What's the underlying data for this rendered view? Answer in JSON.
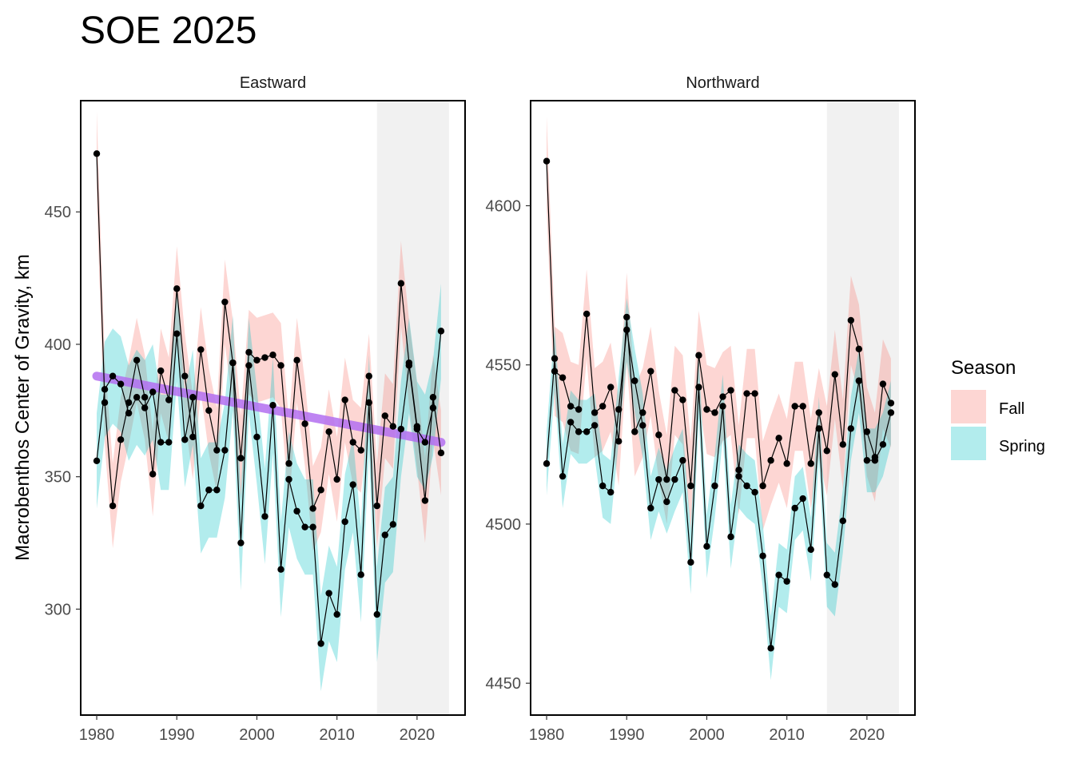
{
  "title": "SOE 2025",
  "ylabel": "Macrobenthos  Center of Gravity, km",
  "colors": {
    "fall_fill": "#f8766d",
    "spring_fill": "#00bfc4",
    "trend": "#b36ef0",
    "shade": "#e6e6e6",
    "points": "#000000"
  },
  "chart_data": [
    {
      "type": "line",
      "panel": "Eastward",
      "x_range": [
        1978,
        2026
      ],
      "ylim": [
        260,
        492
      ],
      "xticks": [
        1980,
        1990,
        2000,
        2010,
        2020
      ],
      "yticks": [
        300,
        350,
        400,
        450
      ],
      "shaded_years": [
        2015,
        2024
      ],
      "grid": false,
      "trend": {
        "series": "Spring",
        "x": [
          1980,
          2023
        ],
        "y": [
          388,
          363
        ]
      },
      "x": [
        1980,
        1981,
        1982,
        1983,
        1984,
        1985,
        1986,
        1987,
        1988,
        1989,
        1990,
        1991,
        1992,
        1993,
        1994,
        1995,
        1996,
        1997,
        1998,
        1999,
        2000,
        2001,
        2002,
        2003,
        2004,
        2005,
        2006,
        2007,
        2008,
        2009,
        2010,
        2011,
        2012,
        2013,
        2014,
        2015,
        2016,
        2017,
        2018,
        2019,
        2020,
        2021,
        2022,
        2023
      ],
      "series": [
        {
          "name": "Fall",
          "values": [
            472,
            378,
            339,
            364,
            378,
            394,
            380,
            351,
            390,
            379,
            421,
            388,
            365,
            398,
            375,
            360,
            416,
            393,
            357,
            397,
            394,
            395,
            396,
            392,
            355,
            394,
            370,
            338,
            345,
            367,
            349,
            379,
            363,
            360,
            388,
            339,
            373,
            369,
            423,
            393,
            369,
            341,
            380,
            359
          ],
          "band": 16
        },
        {
          "name": "Spring",
          "values": [
            356,
            383,
            388,
            385,
            374,
            380,
            376,
            382,
            363,
            363,
            404,
            364,
            380,
            339,
            345,
            345,
            360,
            393,
            325,
            392,
            365,
            335,
            377,
            315,
            349,
            337,
            331,
            331,
            287,
            306,
            298,
            333,
            347,
            313,
            378,
            298,
            328,
            332,
            368,
            392,
            368,
            363,
            376,
            405
          ],
          "band": 18
        }
      ]
    },
    {
      "type": "line",
      "panel": "Northward",
      "x_range": [
        1978,
        2026
      ],
      "ylim": [
        4440,
        4633
      ],
      "xticks": [
        1980,
        1990,
        2000,
        2010,
        2020
      ],
      "yticks": [
        4450,
        4500,
        4550,
        4600
      ],
      "shaded_years": [
        2015,
        2024
      ],
      "grid": false,
      "x": [
        1980,
        1981,
        1982,
        1983,
        1984,
        1985,
        1986,
        1987,
        1988,
        1989,
        1990,
        1991,
        1992,
        1993,
        1994,
        1995,
        1996,
        1997,
        1998,
        1999,
        2000,
        2001,
        2002,
        2003,
        2004,
        2005,
        2006,
        2007,
        2008,
        2009,
        2010,
        2011,
        2012,
        2013,
        2014,
        2015,
        2016,
        2017,
        2018,
        2019,
        2020,
        2021,
        2022,
        2023
      ],
      "series": [
        {
          "name": "Fall",
          "values": [
            4614,
            4548,
            4546,
            4537,
            4536,
            4566,
            4535,
            4537,
            4543,
            4526,
            4565,
            4529,
            4535,
            4548,
            4528,
            4514,
            4542,
            4539,
            4512,
            4553,
            4536,
            4535,
            4540,
            4542,
            4517,
            4541,
            4541,
            4512,
            4520,
            4527,
            4519,
            4537,
            4537,
            4519,
            4535,
            4523,
            4547,
            4525,
            4564,
            4555,
            4529,
            4521,
            4544,
            4538
          ],
          "band": 14
        },
        {
          "name": "Spring",
          "values": [
            4519,
            4552,
            4515,
            4532,
            4529,
            4529,
            4531,
            4512,
            4510,
            4536,
            4561,
            4545,
            4531,
            4505,
            4514,
            4507,
            4514,
            4520,
            4488,
            4543,
            4493,
            4512,
            4537,
            4496,
            4515,
            4512,
            4510,
            4490,
            4461,
            4484,
            4482,
            4505,
            4508,
            4492,
            4530,
            4484,
            4481,
            4501,
            4530,
            4545,
            4520,
            4520,
            4525,
            4535
          ],
          "band": 10
        }
      ]
    }
  ],
  "legend": {
    "title": "Season",
    "items": [
      {
        "label": "Fall",
        "color": "#f8766d"
      },
      {
        "label": "Spring",
        "color": "#00bfc4"
      }
    ]
  }
}
